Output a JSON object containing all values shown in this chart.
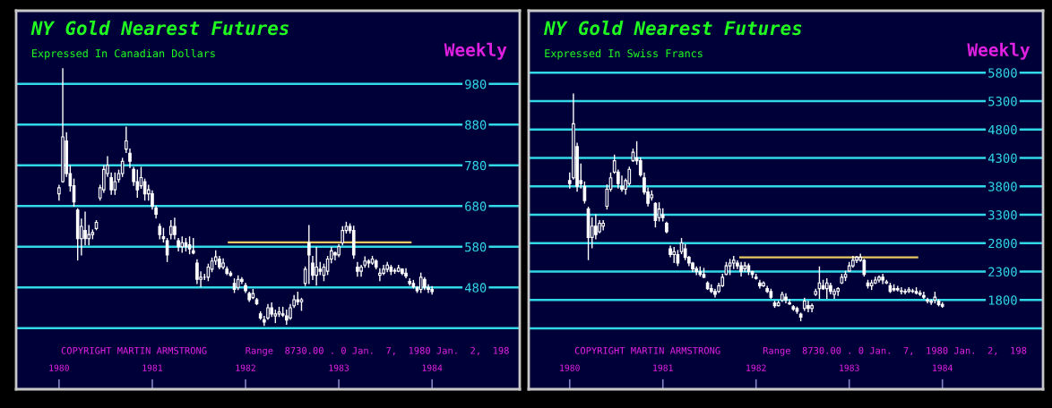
{
  "chart_data": [
    {
      "type": "candlestick",
      "title": "NY Gold Nearest Futures",
      "subtitle": "Expressed In Canadian Dollars",
      "color": "#ffffff",
      "annotations": [
        "Weekly",
        "COPYRIGHT MARTIN ARMSTRONG",
        "Range  8730.00 . 0 Jan.  7,  1980 Jan.  2,  198"
      ],
      "x": [
        1980,
        1980.04,
        1980.08,
        1980.12,
        1980.16,
        1980.2,
        1980.24,
        1980.28,
        1980.32,
        1980.36,
        1980.4,
        1980.44,
        1980.48,
        1980.52,
        1980.56,
        1980.6,
        1980.64,
        1980.68,
        1980.72,
        1980.76,
        1980.8,
        1980.84,
        1980.88,
        1980.92,
        1980.96,
        1981,
        1981.04,
        1981.08,
        1981.12,
        1981.16,
        1981.2,
        1981.24,
        1981.28,
        1981.32,
        1981.36,
        1981.4,
        1981.44,
        1981.48,
        1981.52,
        1981.56,
        1981.6,
        1981.64,
        1981.68,
        1981.72,
        1981.76,
        1981.8,
        1981.84,
        1981.88,
        1981.92,
        1981.96,
        1982,
        1982.04,
        1982.08,
        1982.12,
        1982.16,
        1982.2,
        1982.24,
        1982.28,
        1982.32,
        1982.36,
        1982.4,
        1982.44,
        1982.48,
        1982.52,
        1982.56,
        1982.6,
        1982.64,
        1982.68,
        1982.72,
        1982.76,
        1982.8,
        1982.84,
        1982.88,
        1982.92,
        1982.96,
        1983,
        1983.04,
        1983.08,
        1983.12,
        1983.16,
        1983.2,
        1983.24,
        1983.28,
        1983.32,
        1983.36,
        1983.4,
        1983.44,
        1983.48,
        1983.52,
        1983.56,
        1983.6,
        1983.64,
        1983.68,
        1983.72,
        1983.76,
        1983.8,
        1983.84,
        1983.88,
        1983.92,
        1983.96,
        1984
      ],
      "ohlc": [
        [
          710,
          731,
          695,
          725
        ],
        [
          740,
          1017,
          739,
          850
        ],
        [
          840,
          860,
          753,
          760
        ],
        [
          760,
          779,
          717,
          730
        ],
        [
          730,
          746,
          680,
          690
        ],
        [
          670,
          673,
          548,
          600
        ],
        [
          600,
          648,
          560,
          630
        ],
        [
          620,
          665,
          585,
          600
        ],
        [
          600,
          632,
          585,
          610
        ],
        [
          610,
          621,
          600,
          615
        ],
        [
          625,
          644,
          622,
          640
        ],
        [
          700,
          731,
          695,
          725
        ],
        [
          720,
          779,
          714,
          770
        ],
        [
          760,
          801,
          753,
          780
        ],
        [
          750,
          761,
          709,
          720
        ],
        [
          720,
          761,
          709,
          740
        ],
        [
          745,
          768,
          739,
          760
        ],
        [
          760,
          797,
          753,
          790
        ],
        [
          820,
          874,
          812,
          840
        ],
        [
          810,
          820,
          775,
          790
        ],
        [
          770,
          775,
          731,
          740
        ],
        [
          740,
          768,
          702,
          720
        ],
        [
          730,
          775,
          724,
          750
        ],
        [
          740,
          746,
          695,
          710
        ],
        [
          710,
          731,
          695,
          720
        ],
        [
          710,
          717,
          673,
          680
        ],
        [
          675,
          680,
          651,
          660
        ],
        [
          630,
          636,
          600,
          610
        ],
        [
          605,
          625,
          592,
          600
        ],
        [
          595,
          600,
          544,
          560
        ],
        [
          610,
          644,
          600,
          630
        ],
        [
          630,
          650,
          600,
          610
        ],
        [
          595,
          600,
          570,
          580
        ],
        [
          580,
          604,
          567,
          590
        ],
        [
          590,
          600,
          570,
          580
        ],
        [
          585,
          604,
          563,
          575
        ],
        [
          570,
          600,
          563,
          565
        ],
        [
          540,
          548,
          490,
          500
        ],
        [
          500,
          518,
          482,
          505
        ],
        [
          505,
          512,
          500,
          505
        ],
        [
          505,
          537,
          497,
          530
        ],
        [
          525,
          552,
          519,
          545
        ],
        [
          545,
          570,
          537,
          555
        ],
        [
          550,
          556,
          526,
          530
        ],
        [
          530,
          550,
          526,
          540
        ],
        [
          525,
          530,
          512,
          515
        ],
        [
          515,
          519,
          508,
          510
        ],
        [
          490,
          501,
          468,
          475
        ],
        [
          480,
          508,
          475,
          500
        ],
        [
          500,
          504,
          490,
          495
        ],
        [
          485,
          490,
          468,
          472
        ],
        [
          465,
          468,
          446,
          450
        ],
        [
          455,
          475,
          453,
          465
        ],
        [
          450,
          453,
          438,
          440
        ],
        [
          415,
          420,
          402,
          405
        ],
        [
          400,
          409,
          387,
          395
        ],
        [
          405,
          438,
          402,
          430
        ],
        [
          430,
          442,
          409,
          415
        ],
        [
          410,
          424,
          394,
          415
        ],
        [
          415,
          431,
          409,
          420
        ],
        [
          415,
          431,
          409,
          412
        ],
        [
          410,
          424,
          390,
          400
        ],
        [
          405,
          438,
          402,
          430
        ],
        [
          435,
          460,
          431,
          450
        ],
        [
          450,
          468,
          438,
          445
        ],
        [
          445,
          453,
          424,
          450
        ],
        [
          490,
          530,
          485,
          525
        ],
        [
          590,
          632,
          490,
          560
        ],
        [
          540,
          556,
          500,
          510
        ],
        [
          510,
          578,
          486,
          530
        ],
        [
          525,
          541,
          512,
          520
        ],
        [
          510,
          537,
          497,
          530
        ],
        [
          520,
          556,
          512,
          550
        ],
        [
          550,
          578,
          541,
          570
        ],
        [
          565,
          567,
          548,
          560
        ],
        [
          560,
          585,
          556,
          580
        ],
        [
          590,
          629,
          585,
          620
        ],
        [
          620,
          640,
          614,
          630
        ],
        [
          630,
          636,
          614,
          620
        ],
        [
          620,
          630,
          552,
          560
        ],
        [
          530,
          541,
          508,
          520
        ],
        [
          520,
          534,
          508,
          530
        ],
        [
          535,
          555,
          530,
          545
        ],
        [
          545,
          548,
          530,
          540
        ],
        [
          540,
          556,
          537,
          550
        ],
        [
          545,
          548,
          526,
          530
        ],
        [
          510,
          526,
          497,
          515
        ],
        [
          515,
          534,
          512,
          525
        ],
        [
          525,
          541,
          519,
          535
        ],
        [
          530,
          534,
          512,
          520
        ],
        [
          520,
          526,
          515,
          522
        ],
        [
          520,
          534,
          519,
          528
        ],
        [
          525,
          526,
          512,
          515
        ],
        [
          515,
          526,
          504,
          508
        ],
        [
          495,
          501,
          486,
          490
        ],
        [
          490,
          497,
          479,
          482
        ],
        [
          480,
          482,
          468,
          472
        ],
        [
          475,
          515,
          468,
          505
        ],
        [
          500,
          504,
          475,
          480
        ],
        [
          480,
          486,
          468,
          475
        ],
        [
          475,
          482,
          464,
          470
        ]
      ],
      "series": [
        {
          "type": "line",
          "color": "#e8c860",
          "x": [
            1981.82,
            1983.77
          ],
          "values": [
            591,
            591
          ]
        }
      ],
      "xlim": [
        1979.54,
        1984.94
      ],
      "xticks": [
        1980,
        1981,
        1982,
        1983,
        1984
      ],
      "ylim": [
        230,
        1160
      ],
      "yticks": [
        {
          "value": 380,
          "label": null
        },
        480,
        580,
        680,
        780,
        880,
        980
      ],
      "grid": "y"
    },
    {
      "type": "candlestick",
      "title": "NY Gold Nearest Futures",
      "subtitle": "Expressed In Swiss Francs",
      "color": "#ffffff",
      "annotations": [
        "Weekly",
        "COPYRIGHT MARTIN ARMSTRONG",
        "Range  8730.00 . 0 Jan.  7,  1980 Jan.  2,  198"
      ],
      "x": [
        1980,
        1980.04,
        1980.08,
        1980.12,
        1980.16,
        1980.2,
        1980.24,
        1980.28,
        1980.32,
        1980.36,
        1980.4,
        1980.44,
        1980.48,
        1980.52,
        1980.56,
        1980.6,
        1980.64,
        1980.68,
        1980.72,
        1980.76,
        1980.8,
        1980.84,
        1980.88,
        1980.92,
        1980.96,
        1981,
        1981.04,
        1981.08,
        1981.12,
        1981.16,
        1981.2,
        1981.24,
        1981.28,
        1981.32,
        1981.36,
        1981.4,
        1981.44,
        1981.48,
        1981.52,
        1981.56,
        1981.6,
        1981.64,
        1981.68,
        1981.72,
        1981.76,
        1981.8,
        1981.84,
        1981.88,
        1981.92,
        1981.96,
        1982,
        1982.04,
        1982.08,
        1982.12,
        1982.16,
        1982.2,
        1982.24,
        1982.28,
        1982.32,
        1982.36,
        1982.4,
        1982.44,
        1982.48,
        1982.52,
        1982.56,
        1982.6,
        1982.64,
        1982.68,
        1982.72,
        1982.76,
        1982.8,
        1982.84,
        1982.88,
        1982.92,
        1982.96,
        1983,
        1983.04,
        1983.08,
        1983.12,
        1983.16,
        1983.2,
        1983.24,
        1983.28,
        1983.32,
        1983.36,
        1983.4,
        1983.44,
        1983.48,
        1983.52,
        1983.56,
        1983.6,
        1983.64,
        1983.68,
        1983.72,
        1983.76,
        1983.8,
        1983.84,
        1983.88,
        1983.92,
        1983.96,
        1984
      ],
      "ohlc": [
        [
          3900,
          4032,
          3770,
          3850
        ],
        [
          3950,
          5422,
          3928,
          4900
        ],
        [
          4500,
          4557,
          3718,
          3800
        ],
        [
          3900,
          4190,
          3770,
          3850
        ],
        [
          3800,
          3875,
          3508,
          3550
        ],
        [
          3400,
          3430,
          2512,
          2900
        ],
        [
          2900,
          3246,
          2721,
          3100
        ],
        [
          3100,
          3298,
          2879,
          2950
        ],
        [
          3000,
          3193,
          2983,
          3150
        ],
        [
          3100,
          3193,
          3036,
          3150
        ],
        [
          3450,
          3823,
          3403,
          3750
        ],
        [
          3750,
          4032,
          3718,
          3950
        ],
        [
          4050,
          4347,
          4032,
          4250
        ],
        [
          4050,
          4085,
          3770,
          3850
        ],
        [
          3800,
          3980,
          3718,
          3750
        ],
        [
          3750,
          3928,
          3665,
          3900
        ],
        [
          3850,
          4137,
          3823,
          4100
        ],
        [
          4250,
          4452,
          4242,
          4400
        ],
        [
          4300,
          4583,
          4190,
          4250
        ],
        [
          4250,
          4295,
          3980,
          4000
        ],
        [
          3950,
          4032,
          3665,
          3700
        ],
        [
          3700,
          3770,
          3455,
          3500
        ],
        [
          3600,
          3718,
          3560,
          3650
        ],
        [
          3500,
          3508,
          3088,
          3200
        ],
        [
          3250,
          3508,
          3193,
          3400
        ],
        [
          3300,
          3403,
          3193,
          3250
        ],
        [
          3150,
          3167,
          2983,
          3000
        ],
        [
          2700,
          2747,
          2564,
          2600
        ],
        [
          2600,
          2721,
          2459,
          2650
        ],
        [
          2600,
          2669,
          2407,
          2450
        ],
        [
          2650,
          2879,
          2617,
          2800
        ],
        [
          2700,
          2774,
          2512,
          2550
        ],
        [
          2550,
          2564,
          2407,
          2450
        ],
        [
          2450,
          2459,
          2302,
          2350
        ],
        [
          2350,
          2380,
          2249,
          2300
        ],
        [
          2300,
          2380,
          2223,
          2250
        ],
        [
          2250,
          2354,
          2197,
          2200
        ],
        [
          2100,
          2118,
          1987,
          2000
        ],
        [
          2000,
          2066,
          1934,
          1950
        ],
        [
          1950,
          1987,
          1856,
          1900
        ],
        [
          1950,
          2092,
          1934,
          2050
        ],
        [
          2050,
          2249,
          2039,
          2200
        ],
        [
          2250,
          2459,
          2249,
          2400
        ],
        [
          2400,
          2512,
          2249,
          2450
        ],
        [
          2450,
          2564,
          2354,
          2500
        ],
        [
          2450,
          2485,
          2354,
          2400
        ],
        [
          2400,
          2459,
          2223,
          2300
        ],
        [
          2350,
          2459,
          2302,
          2400
        ],
        [
          2400,
          2433,
          2249,
          2300
        ],
        [
          2300,
          2302,
          2197,
          2250
        ],
        [
          2200,
          2249,
          2170,
          2180
        ],
        [
          2100,
          2144,
          2013,
          2050
        ],
        [
          2050,
          2118,
          2039,
          2100
        ],
        [
          2000,
          2039,
          1934,
          1950
        ],
        [
          1950,
          1987,
          1830,
          1850
        ],
        [
          1750,
          1777,
          1672,
          1700
        ],
        [
          1700,
          1777,
          1699,
          1750
        ],
        [
          1800,
          1934,
          1777,
          1900
        ],
        [
          1850,
          1908,
          1751,
          1800
        ],
        [
          1750,
          1803,
          1725,
          1730
        ],
        [
          1680,
          1699,
          1620,
          1640
        ],
        [
          1650,
          1672,
          1567,
          1600
        ],
        [
          1550,
          1567,
          1436,
          1500
        ],
        [
          1650,
          1830,
          1620,
          1780
        ],
        [
          1700,
          1777,
          1594,
          1650
        ],
        [
          1650,
          1725,
          1594,
          1700
        ],
        [
          1900,
          1987,
          1882,
          1950
        ],
        [
          2000,
          2380,
          1830,
          2100
        ],
        [
          2050,
          2144,
          1987,
          2000
        ],
        [
          2000,
          2170,
          1830,
          2100
        ],
        [
          2050,
          2092,
          1908,
          1950
        ],
        [
          1900,
          1987,
          1830,
          1950
        ],
        [
          1950,
          2013,
          1882,
          2000
        ],
        [
          2100,
          2249,
          2092,
          2200
        ],
        [
          2200,
          2302,
          2144,
          2250
        ],
        [
          2310,
          2459,
          2302,
          2400
        ],
        [
          2400,
          2564,
          2380,
          2500
        ],
        [
          2500,
          2564,
          2459,
          2550
        ],
        [
          2500,
          2606,
          2485,
          2550
        ],
        [
          2500,
          2512,
          2223,
          2250
        ],
        [
          2100,
          2144,
          2013,
          2050
        ],
        [
          2050,
          2144,
          1987,
          2100
        ],
        [
          2100,
          2197,
          2092,
          2150
        ],
        [
          2150,
          2223,
          2118,
          2200
        ],
        [
          2200,
          2249,
          2092,
          2150
        ],
        [
          2100,
          2144,
          2092,
          2120
        ],
        [
          2050,
          2092,
          1934,
          1950
        ],
        [
          1980,
          2066,
          1960,
          2000
        ],
        [
          2000,
          2039,
          1960,
          1980
        ],
        [
          1950,
          2013,
          1908,
          1960
        ],
        [
          1950,
          1987,
          1908,
          1940
        ],
        [
          1950,
          2013,
          1934,
          1980
        ],
        [
          1960,
          1987,
          1934,
          1950
        ],
        [
          1950,
          2013,
          1908,
          1920
        ],
        [
          1920,
          1960,
          1882,
          1900
        ],
        [
          1880,
          1934,
          1830,
          1850
        ],
        [
          1800,
          1830,
          1751,
          1780
        ],
        [
          1760,
          1803,
          1725,
          1780
        ],
        [
          1800,
          1934,
          1751,
          1850
        ],
        [
          1780,
          1803,
          1699,
          1720
        ],
        [
          1720,
          1751,
          1672,
          1690
        ]
      ],
      "series": [
        {
          "type": "line",
          "color": "#e8c860",
          "x": [
            1981.83,
            1983.73
          ],
          "values": [
            2550,
            2550
          ]
        }
      ],
      "xlim": [
        1979.56,
        1985.08
      ],
      "xticks": [
        1980,
        1981,
        1982,
        1983,
        1984
      ],
      "ylim": [
        230,
        6890
      ],
      "yticks": [
        {
          "value": 1300,
          "label": null
        },
        1800,
        2300,
        2800,
        3300,
        3800,
        4300,
        4800,
        5300,
        5800
      ],
      "grid": "y"
    }
  ]
}
